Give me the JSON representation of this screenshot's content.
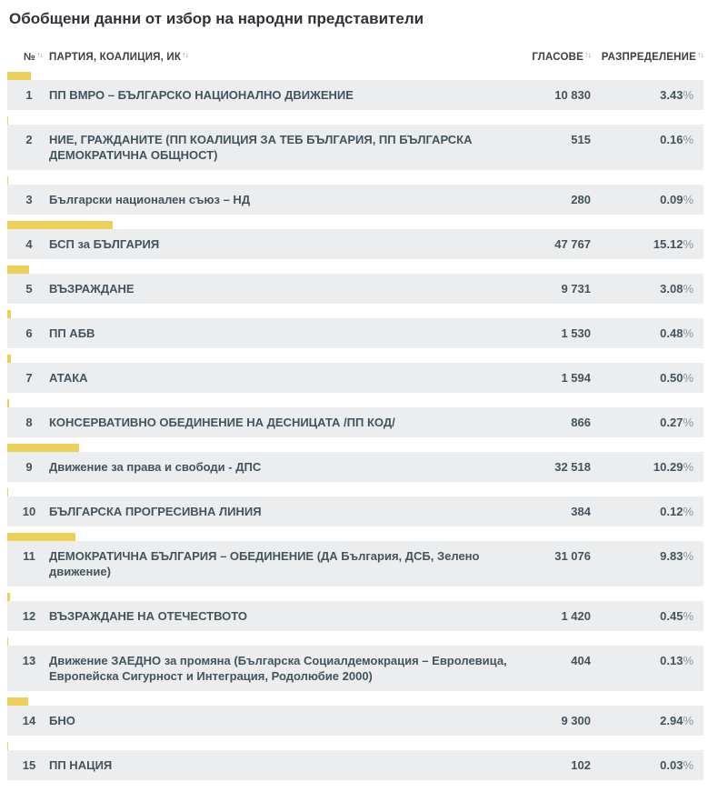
{
  "page": {
    "title": "Обобщени данни от избор на народни представители"
  },
  "table": {
    "columns": {
      "number": "№",
      "party": "ПАРТИЯ, КОАЛИЦИЯ, ИК",
      "votes": "ГЛАСОВЕ",
      "distribution": "РАЗПРЕДЕЛЕНИЕ"
    },
    "sort_icon": "↑↓",
    "percent_sign": "%",
    "rows": [
      {
        "num": "1",
        "party": "ПП ВМРО – БЪЛГАРСКО НАЦИОНАЛНО ДВИЖЕНИЕ",
        "votes": "10 830",
        "pct": "3.43",
        "pct_value": 3.43
      },
      {
        "num": "2",
        "party": "НИЕ, ГРАЖДАНИТЕ (ПП КОАЛИЦИЯ ЗА ТЕБ БЪЛГАРИЯ, ПП БЪЛГАРСКА ДЕМОКРАТИЧНА ОБЩНОСТ)",
        "votes": "515",
        "pct": "0.16",
        "pct_value": 0.16
      },
      {
        "num": "3",
        "party": "Български национален съюз – НД",
        "votes": "280",
        "pct": "0.09",
        "pct_value": 0.09
      },
      {
        "num": "4",
        "party": "БСП за БЪЛГАРИЯ",
        "votes": "47 767",
        "pct": "15.12",
        "pct_value": 15.12
      },
      {
        "num": "5",
        "party": "ВЪЗРАЖДАНЕ",
        "votes": "9 731",
        "pct": "3.08",
        "pct_value": 3.08
      },
      {
        "num": "6",
        "party": "ПП АБВ",
        "votes": "1 530",
        "pct": "0.48",
        "pct_value": 0.48
      },
      {
        "num": "7",
        "party": "АТАКА",
        "votes": "1 594",
        "pct": "0.50",
        "pct_value": 0.5
      },
      {
        "num": "8",
        "party": "КОНСЕРВАТИВНО ОБЕДИНЕНИЕ НА ДЕСНИЦАТА /ПП КОД/",
        "votes": "866",
        "pct": "0.27",
        "pct_value": 0.27
      },
      {
        "num": "9",
        "party": "Движение за права и свободи - ДПС",
        "votes": "32 518",
        "pct": "10.29",
        "pct_value": 10.29
      },
      {
        "num": "10",
        "party": "БЪЛГАРСКА ПРОГРЕСИВНА ЛИНИЯ",
        "votes": "384",
        "pct": "0.12",
        "pct_value": 0.12
      },
      {
        "num": "11",
        "party": "ДЕМОКРАТИЧНА БЪЛГАРИЯ – ОБЕДИНЕНИЕ (ДА България, ДСБ, Зелено движение)",
        "votes": "31 076",
        "pct": "9.83",
        "pct_value": 9.83
      },
      {
        "num": "12",
        "party": "ВЪЗРАЖДАНЕ НА ОТЕЧЕСТВОТО",
        "votes": "1 420",
        "pct": "0.45",
        "pct_value": 0.45
      },
      {
        "num": "13",
        "party": "Движение ЗАЕДНО за промяна (Българска Социалдемокрация – Евролевица, Европейска Сигурност и Интеграция, Родолюбие 2000)",
        "votes": "404",
        "pct": "0.13",
        "pct_value": 0.13
      },
      {
        "num": "14",
        "party": "БНО",
        "votes": "9 300",
        "pct": "2.94",
        "pct_value": 2.94
      },
      {
        "num": "15",
        "party": "ПП НАЦИЯ",
        "votes": "102",
        "pct": "0.03",
        "pct_value": 0.03
      }
    ]
  },
  "colors": {
    "accent_yellow": "#edd05a",
    "row_background": "#ebedee",
    "text": "#44545e"
  }
}
